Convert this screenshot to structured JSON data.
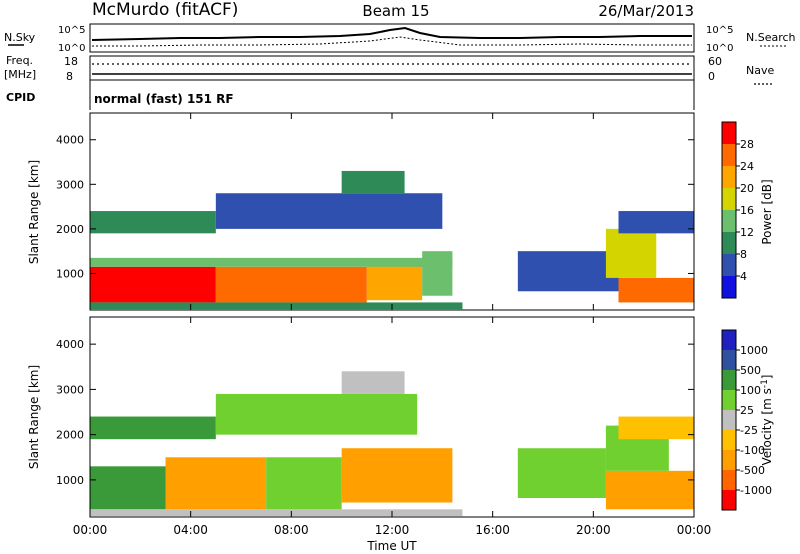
{
  "header": {
    "station": "McMurdo (fitACF)",
    "beam": "Beam 15",
    "date": "26/Mar/2013"
  },
  "top_panels": {
    "nsky_label": "N.Sky",
    "nsky_ticks": [
      "10^5",
      "10^0"
    ],
    "nsearch_label": "N.Search",
    "nsearch_ticks": [
      "10^5",
      "10^0"
    ],
    "freq_label": "Freq.",
    "freq_unit": "[MHz]",
    "freq_ticks": [
      "18",
      "8"
    ],
    "nave_label": "Nave",
    "nave_ticks": [
      "60",
      "0"
    ],
    "cpid_label": "CPID",
    "cpid_text": "normal (fast) 151 RF"
  },
  "colors": {
    "power": [
      "#1010e0",
      "#3050b0",
      "#2e8b57",
      "#6cbf6c",
      "#d4d400",
      "#ffa500",
      "#ff6a00",
      "#ff0000"
    ],
    "velocity": [
      "#ff0000",
      "#ff6600",
      "#ffa000",
      "#ffc000",
      "#c0c0c0",
      "#70d030",
      "#3a9a3a",
      "#3050a0",
      "#2020c0"
    ]
  },
  "chart_data": [
    {
      "type": "heatmap",
      "panel": "power",
      "ylabel": "Slant Range [km]",
      "yticks": [
        "1000",
        "2000",
        "3000",
        "4000"
      ],
      "xticks": [
        "00:00",
        "04:00",
        "08:00",
        "12:00",
        "16:00",
        "20:00",
        "00:00"
      ],
      "xlim": [
        0,
        24
      ],
      "ylim": [
        180,
        4600
      ],
      "colorbar_label": "Power [dB]",
      "colorbar_ticks": [
        "4",
        "8",
        "12",
        "16",
        "20",
        "24",
        "28"
      ],
      "regions": [
        {
          "t0": 0,
          "t1": 5,
          "r0": 350,
          "r1": 1150,
          "level": 7
        },
        {
          "t0": 5,
          "t1": 11,
          "r0": 350,
          "r1": 1150,
          "level": 6
        },
        {
          "t0": 11,
          "t1": 13.2,
          "r0": 400,
          "r1": 1300,
          "level": 5
        },
        {
          "t0": 13.2,
          "t1": 14.4,
          "r0": 500,
          "r1": 1500,
          "level": 3
        },
        {
          "t0": 0,
          "t1": 14.4,
          "r0": 1150,
          "r1": 1350,
          "level": 3
        },
        {
          "t0": 0,
          "t1": 5,
          "r0": 1900,
          "r1": 2400,
          "level": 2
        },
        {
          "t0": 5,
          "t1": 14,
          "r0": 2000,
          "r1": 2800,
          "level": 1
        },
        {
          "t0": 10,
          "t1": 12.5,
          "r0": 2800,
          "r1": 3300,
          "level": 2
        },
        {
          "t0": 17,
          "t1": 21,
          "r0": 600,
          "r1": 1500,
          "level": 1
        },
        {
          "t0": 21,
          "t1": 24,
          "r0": 350,
          "r1": 900,
          "level": 6
        },
        {
          "t0": 20.5,
          "t1": 22.5,
          "r0": 900,
          "r1": 2000,
          "level": 4
        },
        {
          "t0": 21,
          "t1": 24,
          "r0": 1900,
          "r1": 2400,
          "level": 1
        },
        {
          "t0": 0,
          "t1": 14.8,
          "r0": 200,
          "r1": 350,
          "level": 2
        }
      ]
    },
    {
      "type": "heatmap",
      "panel": "velocity",
      "ylabel": "Slant Range [km]",
      "yticks": [
        "1000",
        "2000",
        "3000",
        "4000"
      ],
      "xticks": [
        "00:00",
        "04:00",
        "08:00",
        "12:00",
        "16:00",
        "20:00",
        "00:00"
      ],
      "xlabel": "Time UT",
      "xlim": [
        0,
        24
      ],
      "ylim": [
        180,
        4600
      ],
      "colorbar_label": "Velocity [m s",
      "colorbar_label_sup": "-1",
      "colorbar_label_end": "]",
      "colorbar_ticks": [
        "-1000",
        "-500",
        "-100",
        "-25",
        "25",
        "100",
        "500",
        "1000"
      ],
      "regions": [
        {
          "t0": 0,
          "t1": 3,
          "r0": 350,
          "r1": 1300,
          "level": 6
        },
        {
          "t0": 3,
          "t1": 7,
          "r0": 350,
          "r1": 1500,
          "level": 2
        },
        {
          "t0": 7,
          "t1": 10,
          "r0": 350,
          "r1": 1500,
          "level": 5
        },
        {
          "t0": 10,
          "t1": 14.4,
          "r0": 500,
          "r1": 1700,
          "level": 2
        },
        {
          "t0": 0,
          "t1": 5,
          "r0": 1900,
          "r1": 2400,
          "level": 6
        },
        {
          "t0": 5,
          "t1": 13,
          "r0": 2000,
          "r1": 2900,
          "level": 5
        },
        {
          "t0": 10,
          "t1": 12.5,
          "r0": 2900,
          "r1": 3400,
          "level": 4
        },
        {
          "t0": 17,
          "t1": 20.5,
          "r0": 600,
          "r1": 1700,
          "level": 5
        },
        {
          "t0": 20.5,
          "t1": 24,
          "r0": 350,
          "r1": 1200,
          "level": 2
        },
        {
          "t0": 20.5,
          "t1": 23,
          "r0": 1200,
          "r1": 2200,
          "level": 5
        },
        {
          "t0": 21,
          "t1": 24,
          "r0": 1900,
          "r1": 2400,
          "level": 3
        },
        {
          "t0": 0,
          "t1": 14.8,
          "r0": 200,
          "r1": 350,
          "level": 4
        }
      ]
    }
  ]
}
